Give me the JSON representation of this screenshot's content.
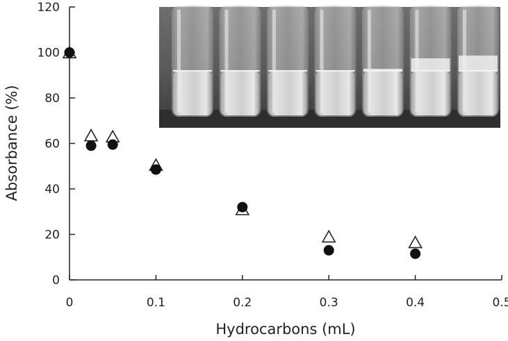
{
  "chart_data": {
    "type": "scatter",
    "title": "",
    "xlabel": "Hydrocarbons (mL)",
    "ylabel": "Absorbance (%)",
    "xlim": [
      0,
      0.5
    ],
    "ylim": [
      0,
      120
    ],
    "x_ticks": [
      "0",
      "0.1",
      "0.2",
      "0.3",
      "0.4",
      "0.5"
    ],
    "y_ticks": [
      "0",
      "20",
      "40",
      "60",
      "80",
      "100",
      "120"
    ],
    "grid": false,
    "legend": "none",
    "series": [
      {
        "marker": "filled-circle",
        "color": "#111111",
        "points": [
          {
            "x": 0,
            "y": 100
          },
          {
            "x": 0.025,
            "y": 59
          },
          {
            "x": 0.05,
            "y": 59.5
          },
          {
            "x": 0.1,
            "y": 48.5
          },
          {
            "x": 0.2,
            "y": 32
          },
          {
            "x": 0.3,
            "y": 13
          },
          {
            "x": 0.4,
            "y": 11.5
          }
        ]
      },
      {
        "marker": "open-triangle",
        "color": "#222222",
        "points": [
          {
            "x": 0,
            "y": 99.5
          },
          {
            "x": 0.025,
            "y": 63
          },
          {
            "x": 0.05,
            "y": 62.5
          },
          {
            "x": 0.1,
            "y": 50
          },
          {
            "x": 0.2,
            "y": 30.5
          },
          {
            "x": 0.3,
            "y": 18.5
          },
          {
            "x": 0.4,
            "y": 16
          }
        ]
      }
    ],
    "inset": {
      "type": "photograph",
      "subject": "test-tubes",
      "tube_count": 7
    }
  }
}
